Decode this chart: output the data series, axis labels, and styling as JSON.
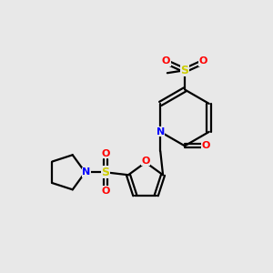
{
  "background_color": "#e8e8e8",
  "bond_color": "#000000",
  "O_color": "#ff0000",
  "N_color": "#0000ff",
  "S_color": "#cccc00",
  "lw": 1.6,
  "xlim": [
    0,
    10
  ],
  "ylim": [
    0,
    10
  ]
}
